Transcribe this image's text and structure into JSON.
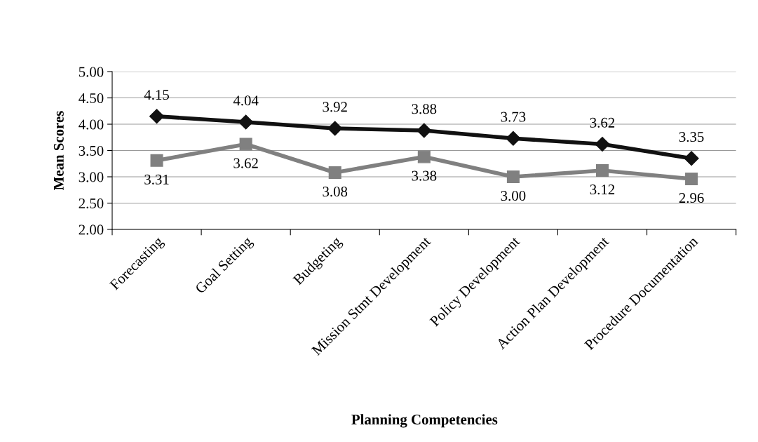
{
  "chart_data": {
    "type": "line",
    "xlabel": "Planning Competencies",
    "ylabel": "Mean Scores",
    "categories": [
      "Forecasting",
      "Goal Setting",
      "Budgeting",
      "Mission Stmt Development",
      "Policy Development",
      "Action Plan Development",
      "Procedure Documentation"
    ],
    "series": [
      {
        "color": "#111111",
        "marker": "diamond",
        "values": [
          4.15,
          4.04,
          3.92,
          3.88,
          3.73,
          3.62,
          3.35
        ],
        "value_labels": [
          "4.15",
          "4.04",
          "3.92",
          "3.88",
          "3.73",
          "3.62",
          "3.35"
        ]
      },
      {
        "color": "#808080",
        "marker": "square",
        "values": [
          3.31,
          3.62,
          3.08,
          3.38,
          3.0,
          3.12,
          2.96
        ],
        "value_labels": [
          "3.31",
          "3.62",
          "3.08",
          "3.38",
          "3.00",
          "3.12",
          "2.96"
        ]
      }
    ],
    "ylim": [
      2.0,
      5.0
    ],
    "yticks": [
      {
        "value": 2.0,
        "label": "2.00"
      },
      {
        "value": 2.5,
        "label": "2.50"
      },
      {
        "value": 3.0,
        "label": "3.00"
      },
      {
        "value": 3.5,
        "label": "3.50"
      },
      {
        "value": 4.0,
        "label": "4.00"
      },
      {
        "value": 4.5,
        "label": "4.50"
      },
      {
        "value": 5.0,
        "label": "5.00"
      }
    ],
    "grid": "y",
    "line_style": "solid"
  }
}
